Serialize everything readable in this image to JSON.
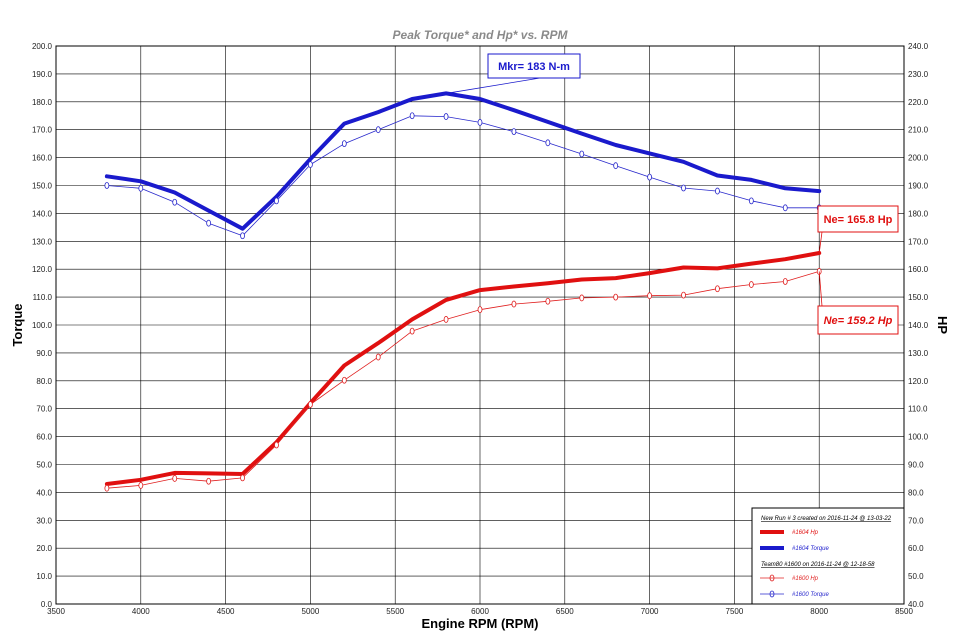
{
  "chart_data": {
    "type": "line",
    "title": "Peak Torque* and Hp* vs. RPM",
    "xlabel": "Engine RPM (RPM)",
    "ylabel_left": "Torque",
    "ylabel_right": "HP",
    "xlim": [
      3500,
      8500
    ],
    "ylim_left": [
      0,
      200
    ],
    "ylim_right": [
      40,
      240
    ],
    "x_ticks": [
      3500,
      4000,
      4500,
      5000,
      5500,
      6000,
      6500,
      7000,
      7500,
      8000,
      8500
    ],
    "y_ticks_left": [
      "0.0",
      "10.0",
      "20.0",
      "30.0",
      "40.0",
      "50.0",
      "60.0",
      "70.0",
      "80.0",
      "90.0",
      "100.0",
      "110.0",
      "120.0",
      "130.0",
      "140.0",
      "150.0",
      "160.0",
      "170.0",
      "180.0",
      "190.0",
      "200.0"
    ],
    "y_ticks_right": [
      "40.0",
      "50.0",
      "60.0",
      "70.0",
      "80.0",
      "90.0",
      "100.0",
      "110.0",
      "120.0",
      "130.0",
      "140.0",
      "150.0",
      "160.0",
      "170.0",
      "180.0",
      "190.0",
      "200.0",
      "210.0",
      "220.0",
      "230.0",
      "240.0"
    ],
    "grid": true,
    "legend_position": "bottom-right",
    "series": [
      {
        "name": "#1604 Torque",
        "axis": "left",
        "color": "#1a1acc",
        "style": "thick",
        "x": [
          3800,
          4000,
          4200,
          4400,
          4600,
          4800,
          5000,
          5200,
          5400,
          5600,
          5800,
          6000,
          6200,
          6400,
          6600,
          6800,
          7000,
          7200,
          7400,
          7600,
          7800,
          8000
        ],
        "y": [
          153.3,
          151.5,
          147.5,
          141,
          134.5,
          146,
          159.5,
          172.2,
          176.3,
          181,
          183,
          181,
          177,
          172.8,
          168.6,
          164.5,
          161.5,
          158.5,
          153.6,
          152,
          149,
          148
        ]
      },
      {
        "name": "#1604 Hp",
        "axis": "right",
        "color": "#e01010",
        "style": "thick",
        "x": [
          3800,
          4000,
          4200,
          4400,
          4600,
          4800,
          5000,
          5200,
          5400,
          5600,
          5800,
          6000,
          6200,
          6400,
          6600,
          6800,
          7000,
          7200,
          7400,
          7600,
          7800,
          8000
        ],
        "y": [
          83,
          84.5,
          87,
          86.8,
          86.6,
          98,
          112,
          125.5,
          133.5,
          142,
          149,
          152.5,
          153.8,
          155,
          156.3,
          156.8,
          158.6,
          160.6,
          160.3,
          162,
          163.6,
          165.8
        ]
      },
      {
        "name": "#1600 Torque",
        "axis": "left",
        "color": "#2a2acc",
        "style": "thin-marker",
        "x": [
          3800,
          4000,
          4200,
          4400,
          4600,
          4800,
          5000,
          5200,
          5400,
          5600,
          5800,
          6000,
          6200,
          6400,
          6600,
          6800,
          7000,
          7200,
          7400,
          7600,
          7800,
          8000
        ],
        "y": [
          150,
          149,
          144,
          136.5,
          132,
          144.5,
          157.5,
          165,
          170,
          175,
          174.7,
          172.6,
          169.3,
          165.3,
          161.3,
          157.1,
          153,
          149.1,
          148,
          144.5,
          142,
          142
        ]
      },
      {
        "name": "#1600 Hp",
        "axis": "right",
        "color": "#e02020",
        "style": "thin-marker",
        "x": [
          3800,
          4000,
          4200,
          4400,
          4600,
          4800,
          5000,
          5200,
          5400,
          5600,
          5800,
          6000,
          6200,
          6400,
          6600,
          6800,
          7000,
          7200,
          7400,
          7600,
          7800,
          8000
        ],
        "y": [
          81.5,
          82.5,
          85,
          84,
          85.2,
          97,
          111.5,
          120.2,
          128.5,
          137.8,
          142,
          145.5,
          147.5,
          148.5,
          149.7,
          150,
          150.5,
          150.7,
          153,
          154.5,
          155.6,
          159.2
        ]
      }
    ],
    "annotations": [
      {
        "text": "Mkr= 183 N-m",
        "color": "#1a1acc",
        "x": 5800,
        "y": 183,
        "axis": "left"
      },
      {
        "text": "Ne= 165.8 Hp",
        "color": "#e01010",
        "x": 8000,
        "y": 165.8,
        "axis": "right"
      },
      {
        "text": "Ne= 159.2 Hp",
        "color": "#e01010",
        "x": 8000,
        "y": 159.2,
        "axis": "right"
      }
    ],
    "legend": {
      "run1_header": "New Run # 3 created on 2016-11-24 @ 13-03-22",
      "run2_header": "Team80 #1600 on 2016-11-24 @ 12-18-58",
      "items": [
        "#1604 Hp",
        "#1604 Torque",
        "#1600 Hp",
        "#1600 Torque"
      ]
    }
  }
}
